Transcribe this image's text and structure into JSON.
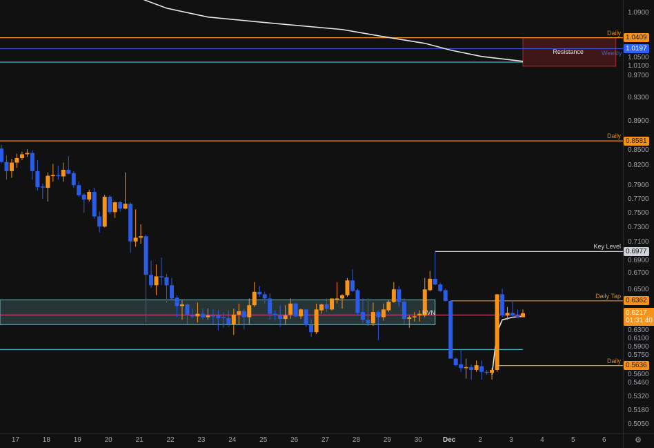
{
  "chart_data": {
    "type": "candlestick",
    "y_scale": "log",
    "ylim": [
      0.497,
      1.117
    ],
    "grid": false,
    "colors": {
      "background": "#111111",
      "up": "#f7931a",
      "down": "#2b5ce6",
      "vwap": "#e8e8e8"
    },
    "x_ticks": [
      {
        "label": "17",
        "t": "11-17 00:00"
      },
      {
        "label": "18",
        "t": "11-18 00:00"
      },
      {
        "label": "19",
        "t": "11-19 00:00"
      },
      {
        "label": "20",
        "t": "11-20 00:00"
      },
      {
        "label": "21",
        "t": "11-21 00:00"
      },
      {
        "label": "22",
        "t": "11-22 00:00"
      },
      {
        "label": "23",
        "t": "11-23 00:00"
      },
      {
        "label": "24",
        "t": "11-24 00:00"
      },
      {
        "label": "25",
        "t": "11-25 00:00"
      },
      {
        "label": "26",
        "t": "11-26 00:00"
      },
      {
        "label": "27",
        "t": "11-27 00:00"
      },
      {
        "label": "28",
        "t": "11-28 00:00"
      },
      {
        "label": "29",
        "t": "11-29 00:00"
      },
      {
        "label": "30",
        "t": "11-30 00:00"
      },
      {
        "label": "Dec",
        "t": "12-01 00:00",
        "month": true
      },
      {
        "label": "2",
        "t": "12-02 00:00"
      },
      {
        "label": "3",
        "t": "12-03 00:00"
      },
      {
        "label": "4",
        "t": "12-04 00:00"
      },
      {
        "label": "5",
        "t": "12-05 00:00"
      },
      {
        "label": "6",
        "t": "12-06 00:00"
      }
    ],
    "y_ticks": [
      "1.0900",
      "1.0500",
      "1.0100",
      "0.9700",
      "0.9300",
      "0.8900",
      "0.8500",
      "0.8200",
      "0.7900",
      "0.7700",
      "0.7500",
      "0.7300",
      "0.7100",
      "0.6900",
      "0.6700",
      "0.6500",
      "0.6300",
      "0.6100",
      "0.5900",
      "0.5750",
      "0.5600",
      "0.5460",
      "0.5320",
      "0.5180",
      "0.5050"
    ],
    "candles_ohlc": [
      [
        0.846,
        0.852,
        0.823,
        0.825
      ],
      [
        0.825,
        0.835,
        0.798,
        0.811
      ],
      [
        0.811,
        0.83,
        0.801,
        0.824
      ],
      [
        0.824,
        0.838,
        0.816,
        0.831
      ],
      [
        0.831,
        0.841,
        0.828,
        0.837
      ],
      [
        0.837,
        0.845,
        0.833,
        0.839
      ],
      [
        0.839,
        0.843,
        0.798,
        0.811
      ],
      [
        0.811,
        0.828,
        0.782,
        0.787
      ],
      [
        0.788,
        0.792,
        0.77,
        0.787
      ],
      [
        0.786,
        0.809,
        0.766,
        0.804
      ],
      [
        0.804,
        0.822,
        0.795,
        0.805
      ],
      [
        0.805,
        0.819,
        0.798,
        0.804
      ],
      [
        0.803,
        0.824,
        0.795,
        0.813
      ],
      [
        0.813,
        0.834,
        0.806,
        0.807
      ],
      [
        0.808,
        0.811,
        0.786,
        0.79
      ],
      [
        0.79,
        0.795,
        0.773,
        0.775
      ],
      [
        0.776,
        0.778,
        0.75,
        0.769
      ],
      [
        0.769,
        0.783,
        0.766,
        0.78
      ],
      [
        0.78,
        0.786,
        0.742,
        0.745
      ],
      [
        0.745,
        0.752,
        0.723,
        0.731
      ],
      [
        0.731,
        0.776,
        0.73,
        0.773
      ],
      [
        0.773,
        0.775,
        0.748,
        0.751
      ],
      [
        0.751,
        0.766,
        0.743,
        0.765
      ],
      [
        0.765,
        0.767,
        0.752,
        0.756
      ],
      [
        0.756,
        0.809,
        0.755,
        0.763
      ],
      [
        0.763,
        0.765,
        0.696,
        0.711
      ],
      [
        0.711,
        0.755,
        0.704,
        0.716
      ],
      [
        0.716,
        0.734,
        0.708,
        0.718
      ],
      [
        0.718,
        0.72,
        0.611,
        0.668
      ],
      [
        0.668,
        0.686,
        0.652,
        0.655
      ],
      [
        0.655,
        0.681,
        0.643,
        0.666
      ],
      [
        0.666,
        0.69,
        0.655,
        0.665
      ],
      [
        0.665,
        0.669,
        0.634,
        0.655
      ],
      [
        0.655,
        0.664,
        0.638,
        0.639
      ],
      [
        0.64,
        0.643,
        0.617,
        0.63
      ],
      [
        0.63,
        0.637,
        0.614,
        0.632
      ],
      [
        0.632,
        0.633,
        0.609,
        0.62
      ],
      [
        0.619,
        0.627,
        0.616,
        0.618
      ],
      [
        0.618,
        0.634,
        0.611,
        0.621
      ],
      [
        0.621,
        0.627,
        0.614,
        0.617
      ],
      [
        0.617,
        0.627,
        0.614,
        0.619
      ],
      [
        0.619,
        0.626,
        0.609,
        0.618
      ],
      [
        0.619,
        0.625,
        0.602,
        0.616
      ],
      [
        0.617,
        0.623,
        0.605,
        0.616
      ],
      [
        0.616,
        0.625,
        0.606,
        0.609
      ],
      [
        0.609,
        0.627,
        0.597,
        0.62
      ],
      [
        0.62,
        0.633,
        0.609,
        0.624
      ],
      [
        0.624,
        0.627,
        0.603,
        0.617
      ],
      [
        0.617,
        0.639,
        0.609,
        0.631
      ],
      [
        0.631,
        0.659,
        0.629,
        0.647
      ],
      [
        0.647,
        0.654,
        0.641,
        0.644
      ],
      [
        0.644,
        0.647,
        0.633,
        0.639
      ],
      [
        0.639,
        0.645,
        0.614,
        0.621
      ],
      [
        0.621,
        0.625,
        0.613,
        0.619
      ],
      [
        0.619,
        0.631,
        0.606,
        0.615
      ],
      [
        0.615,
        0.631,
        0.609,
        0.619
      ],
      [
        0.62,
        0.639,
        0.615,
        0.633
      ],
      [
        0.633,
        0.634,
        0.617,
        0.618
      ],
      [
        0.618,
        0.627,
        0.615,
        0.626
      ],
      [
        0.626,
        0.626,
        0.606,
        0.608
      ],
      [
        0.608,
        0.615,
        0.595,
        0.6
      ],
      [
        0.6,
        0.633,
        0.598,
        0.626
      ],
      [
        0.625,
        0.633,
        0.621,
        0.632
      ],
      [
        0.632,
        0.639,
        0.623,
        0.627
      ],
      [
        0.626,
        0.639,
        0.625,
        0.639
      ],
      [
        0.638,
        0.659,
        0.633,
        0.639
      ],
      [
        0.639,
        0.644,
        0.627,
        0.643
      ],
      [
        0.643,
        0.664,
        0.641,
        0.661
      ],
      [
        0.661,
        0.675,
        0.647,
        0.648
      ],
      [
        0.649,
        0.651,
        0.619,
        0.622
      ],
      [
        0.623,
        0.639,
        0.61,
        0.614
      ],
      [
        0.614,
        0.639,
        0.607,
        0.61
      ],
      [
        0.61,
        0.634,
        0.607,
        0.623
      ],
      [
        0.623,
        0.625,
        0.591,
        0.617
      ],
      [
        0.617,
        0.633,
        0.613,
        0.626
      ],
      [
        0.625,
        0.637,
        0.623,
        0.635
      ],
      [
        0.635,
        0.659,
        0.634,
        0.65
      ],
      [
        0.65,
        0.654,
        0.629,
        0.635
      ],
      [
        0.635,
        0.639,
        0.609,
        0.615
      ],
      [
        0.615,
        0.619,
        0.605,
        0.617
      ],
      [
        0.617,
        0.623,
        0.612,
        0.618
      ],
      [
        0.619,
        0.625,
        0.612,
        0.621
      ],
      [
        0.619,
        0.664,
        0.617,
        0.65
      ],
      [
        0.649,
        0.673,
        0.648,
        0.663
      ],
      [
        0.663,
        0.697,
        0.655,
        0.656
      ],
      [
        0.656,
        0.658,
        0.647,
        0.648
      ],
      [
        0.649,
        0.651,
        0.635,
        0.636
      ],
      [
        0.636,
        0.637,
        0.571,
        0.571
      ],
      [
        0.571,
        0.572,
        0.563,
        0.564
      ],
      [
        0.565,
        0.58,
        0.557,
        0.561
      ],
      [
        0.561,
        0.571,
        0.55,
        0.562
      ],
      [
        0.562,
        0.565,
        0.549,
        0.559
      ],
      [
        0.559,
        0.569,
        0.557,
        0.564
      ],
      [
        0.563,
        0.569,
        0.549,
        0.557
      ],
      [
        0.557,
        0.559,
        0.554,
        0.556
      ],
      [
        0.556,
        0.561,
        0.549,
        0.559
      ],
      [
        0.559,
        0.644,
        0.557,
        0.644
      ],
      [
        0.644,
        0.651,
        0.617,
        0.619
      ],
      [
        0.619,
        0.629,
        0.614,
        0.622
      ],
      [
        0.622,
        0.637,
        0.617,
        0.619
      ],
      [
        0.619,
        0.626,
        0.617,
        0.617
      ],
      [
        0.617,
        0.626,
        0.617,
        0.6217
      ]
    ],
    "candles_start": "11-16 12:00",
    "vwap_lines": [
      [
        [
          "11-21 00:00",
          1.12
        ],
        [
          "11-21 20:00",
          1.1
        ],
        [
          "11-23 04:00",
          1.082
        ],
        [
          "11-25 12:00",
          1.068
        ],
        [
          "11-27 12:00",
          1.057
        ],
        [
          "11-28 20:00",
          1.043
        ],
        [
          "11-30 04:00",
          1.03
        ],
        [
          "12-01 00:00",
          1.017
        ],
        [
          "12-02 00:00",
          1.005
        ],
        [
          "12-03 08:00",
          0.996
        ]
      ],
      [
        [
          "12-02 08:00",
          0.554
        ],
        [
          "12-02 12:00",
          0.6
        ],
        [
          "12-02 16:00",
          0.614
        ],
        [
          "12-03 00:00",
          0.617
        ],
        [
          "12-03 08:00",
          0.618
        ]
      ]
    ],
    "levels": [
      {
        "name": "daily-1",
        "label": "Daily",
        "price": 1.0409,
        "tag": "1.0409",
        "color": "#f7931a",
        "from": null,
        "to": null
      },
      {
        "name": "weekly",
        "label": "Weekly",
        "price": 1.0197,
        "tag": "1.0197",
        "color": "#3b4fd6",
        "tagColor": "#2962ff",
        "from": null,
        "to": null
      },
      {
        "name": "cyan-upper",
        "label": "",
        "price": 0.9944,
        "tag": "",
        "color": "#3fb8c8",
        "from": null,
        "to": "12-03 08:00"
      },
      {
        "name": "daily-2",
        "label": "Daily",
        "price": 0.8581,
        "tag": "0.8581",
        "color": "#f7931a",
        "from": null,
        "to": null
      },
      {
        "name": "key-level",
        "label": "Key Level",
        "price": 0.6977,
        "tag": "0.6977",
        "color": "#cfd2d8",
        "from": "11-30 12:00",
        "to": null
      },
      {
        "name": "daily-tap",
        "label": "Daily Tap",
        "price": 0.6362,
        "tag": "0.6362",
        "color": "#f7931a",
        "from": "12-01 00:00",
        "to": null
      },
      {
        "name": "hvn",
        "label": "HVN",
        "price": 0.6196,
        "tag": "",
        "color": "#d8407a",
        "from": null,
        "to": "12-03 08:00"
      },
      {
        "name": "cyan-lower",
        "label": "",
        "price": 0.5808,
        "tag": "",
        "color": "#3fb8c8",
        "from": null,
        "to": "12-03 08:00"
      },
      {
        "name": "daily-3",
        "label": "Daily",
        "price": 0.5636,
        "tag": "0.5636",
        "color": "#f7931a",
        "from": "12-02 12:00",
        "to": null
      }
    ],
    "zones": [
      {
        "name": "resistance-zone",
        "label": "Resistance",
        "top": 1.041,
        "bottom": 0.9868,
        "from": "12-03 08:00",
        "to": "12-06 08:00",
        "fill": "rgba(120,30,30,0.45)",
        "border": "#a03030"
      },
      {
        "name": "hvn-zone",
        "label": "",
        "top": 0.6374,
        "bottom": 0.6085,
        "from": null,
        "to": "11-30 12:00",
        "fill": "rgba(120,180,190,0.22)",
        "border": "#7fb8c0"
      }
    ],
    "last_price": {
      "price": "0.6217",
      "countdown": "01:31:40",
      "color": "#f7931a"
    }
  },
  "toolbar": {
    "settings_icon": "settings-icon"
  }
}
